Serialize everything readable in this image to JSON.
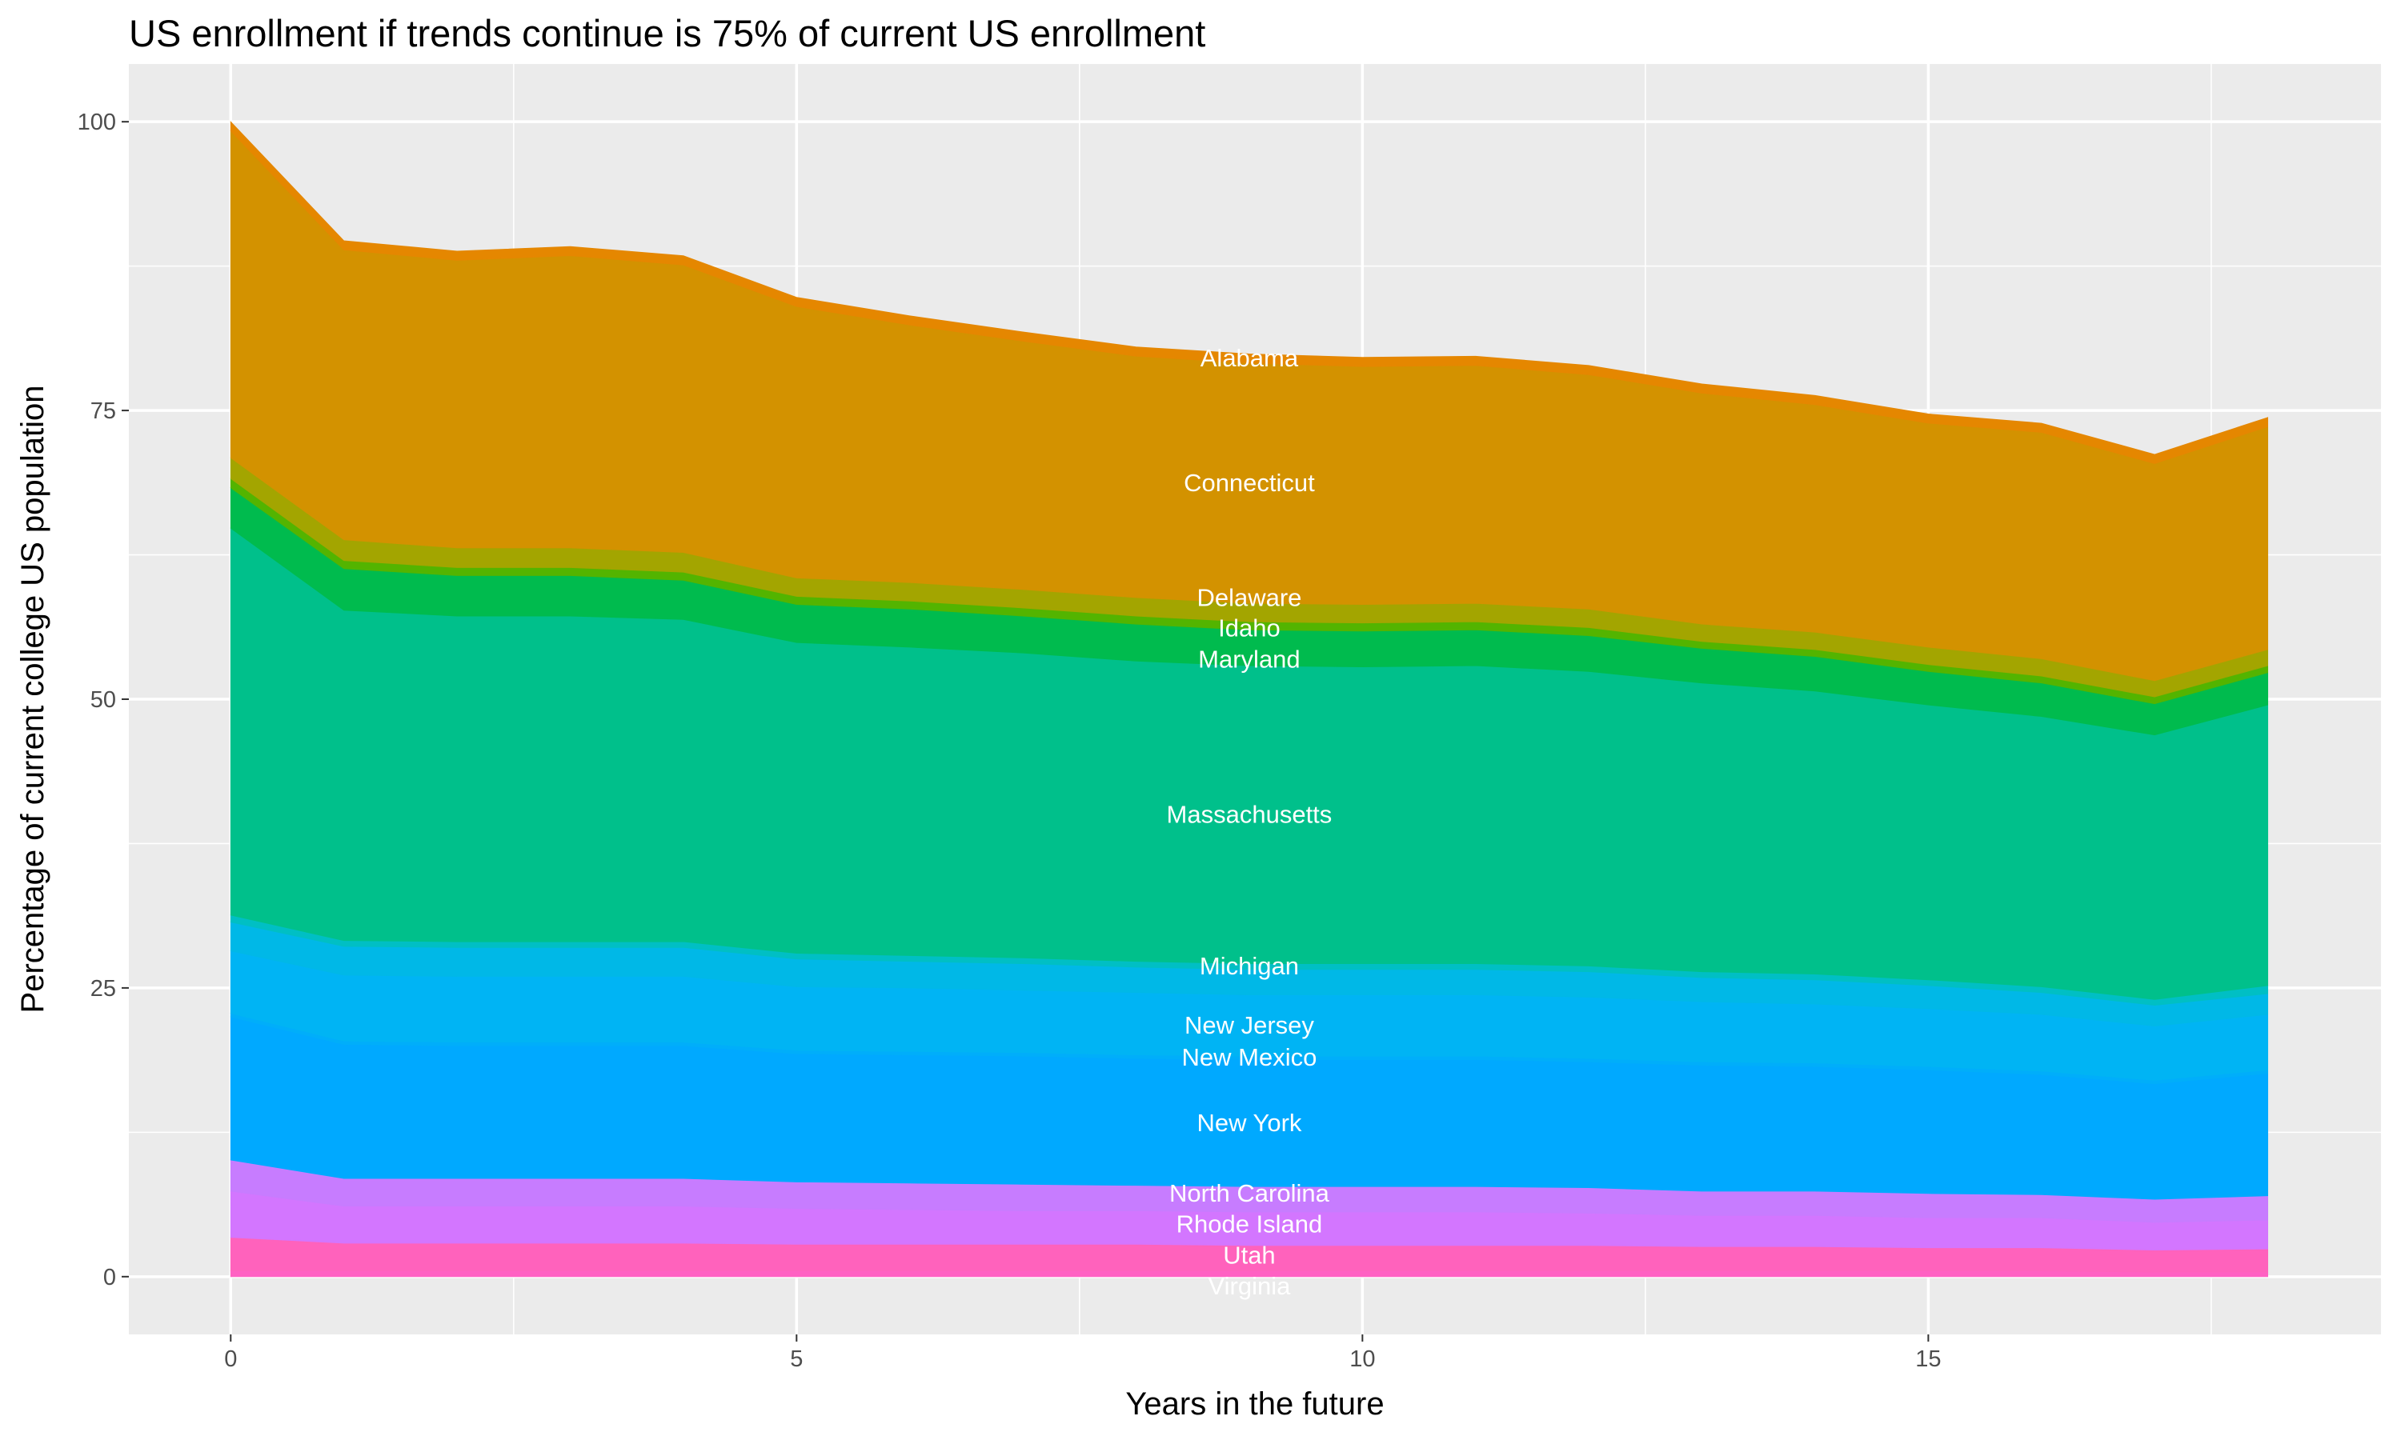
{
  "chart_data": {
    "type": "area",
    "stacked": true,
    "title": "US enrollment if trends continue is 75% of current US enrollment",
    "xlabel": "Years in the future",
    "ylabel": "Percentage of current college US population",
    "xlim": [
      -0.9,
      19
    ],
    "ylim": [
      -5,
      105
    ],
    "x_ticks": [
      0,
      5,
      10,
      15
    ],
    "y_ticks": [
      0,
      25,
      50,
      75,
      100
    ],
    "grid": true,
    "legend": "none",
    "label_x": 9,
    "x": [
      0,
      1,
      2,
      3,
      4,
      5,
      6,
      7,
      8,
      9,
      10,
      11,
      12,
      13,
      14,
      15,
      16,
      17,
      18
    ],
    "series": [
      {
        "name": "Virginia",
        "color": "#FF61C3",
        "values": [
          0.5,
          0.5,
          0.5,
          0.5,
          0.5,
          0.5,
          0.5,
          0.5,
          0.5,
          0.5,
          0.5,
          0.5,
          0.5,
          0.5,
          0.5,
          0.5,
          0.5,
          0.4,
          0.4
        ]
      },
      {
        "name": "Utah",
        "color": "#FF62BC",
        "values": [
          2.9,
          2.4,
          2.4,
          2.4,
          2.4,
          2.3,
          2.3,
          2.3,
          2.3,
          2.2,
          2.2,
          2.2,
          2.2,
          2.1,
          2.1,
          2.0,
          2.0,
          1.9,
          2.0
        ]
      },
      {
        "name": "Rhode Island",
        "color": "#D376FF",
        "values": [
          4.0,
          3.2,
          3.2,
          3.2,
          3.2,
          3.1,
          3.0,
          2.9,
          2.9,
          2.9,
          2.9,
          2.9,
          2.8,
          2.7,
          2.7,
          2.6,
          2.6,
          2.4,
          2.5
        ]
      },
      {
        "name": "North Carolina",
        "color": "#C77CFF",
        "values": [
          2.7,
          2.4,
          2.4,
          2.4,
          2.4,
          2.3,
          2.3,
          2.3,
          2.2,
          2.2,
          2.2,
          2.2,
          2.2,
          2.1,
          2.1,
          2.1,
          2.0,
          2.0,
          2.1
        ]
      },
      {
        "name": "New York",
        "color": "#00A9FF",
        "values": [
          12.4,
          11.6,
          11.5,
          11.5,
          11.5,
          11.1,
          11.1,
          11.1,
          11.0,
          11.0,
          11.0,
          11.0,
          10.9,
          10.9,
          10.8,
          10.7,
          10.4,
          10.0,
          10.6
        ]
      },
      {
        "name": "New Mexico",
        "color": "#00AEFA",
        "values": [
          0.3,
          0.3,
          0.3,
          0.3,
          0.3,
          0.3,
          0.3,
          0.3,
          0.3,
          0.3,
          0.3,
          0.3,
          0.3,
          0.3,
          0.3,
          0.3,
          0.3,
          0.3,
          0.3
        ]
      },
      {
        "name": "New Jersey",
        "color": "#00B4F4",
        "values": [
          5.4,
          5.7,
          5.7,
          5.7,
          5.7,
          5.5,
          5.5,
          5.4,
          5.4,
          5.3,
          5.3,
          5.3,
          5.3,
          5.2,
          5.1,
          5.0,
          4.9,
          4.7,
          4.8
        ]
      },
      {
        "color": "#00B8E7",
        "values": [
          2.5,
          2.5,
          2.5,
          2.5,
          2.5,
          2.4,
          2.3,
          2.3,
          2.2,
          2.2,
          2.2,
          2.2,
          2.2,
          2.1,
          2.1,
          2.0,
          1.9,
          1.8,
          1.8
        ]
      },
      {
        "name": "Michigan",
        "color": "#00BFC4",
        "values": [
          0.6,
          0.5,
          0.5,
          0.5,
          0.5,
          0.5,
          0.5,
          0.5,
          0.5,
          0.5,
          0.5,
          0.5,
          0.5,
          0.5,
          0.5,
          0.5,
          0.5,
          0.5,
          0.7
        ]
      },
      {
        "name": "Massachusetts",
        "color": "#00C08B",
        "values": [
          33.5,
          28.6,
          28.2,
          28.2,
          27.9,
          26.9,
          26.7,
          26.4,
          26.0,
          25.8,
          25.7,
          25.8,
          25.5,
          25.0,
          24.5,
          23.8,
          23.4,
          22.9,
          24.3
        ]
      },
      {
        "name": "Maryland",
        "color": "#00BB4E",
        "values": [
          3.5,
          3.6,
          3.5,
          3.5,
          3.4,
          3.3,
          3.3,
          3.2,
          3.2,
          3.1,
          3.1,
          3.1,
          3.1,
          3.0,
          3.0,
          2.9,
          2.9,
          2.7,
          2.8
        ]
      },
      {
        "name": "Idaho",
        "color": "#53B400",
        "values": [
          0.8,
          0.7,
          0.7,
          0.7,
          0.7,
          0.7,
          0.7,
          0.7,
          0.7,
          0.7,
          0.7,
          0.7,
          0.7,
          0.6,
          0.6,
          0.6,
          0.6,
          0.6,
          0.6
        ]
      },
      {
        "name": "Delaware",
        "color": "#A3A500",
        "values": [
          1.8,
          1.8,
          1.7,
          1.7,
          1.7,
          1.6,
          1.6,
          1.6,
          1.6,
          1.6,
          1.6,
          1.6,
          1.6,
          1.5,
          1.5,
          1.5,
          1.5,
          1.4,
          1.4
        ]
      },
      {
        "name": "Connecticut",
        "color": "#D39200",
        "values": [
          28.3,
          25.1,
          24.9,
          25.3,
          24.9,
          23.5,
          22.3,
          21.5,
          20.9,
          20.8,
          20.6,
          20.6,
          20.3,
          20.0,
          19.7,
          19.4,
          19.6,
          18.8,
          19.3
        ]
      },
      {
        "name": "Alabama",
        "color": "#E58700",
        "values": [
          0.8,
          0.8,
          0.8,
          0.8,
          0.8,
          0.8,
          0.8,
          0.8,
          0.8,
          0.8,
          0.8,
          0.8,
          0.8,
          0.8,
          0.8,
          0.8,
          0.8,
          0.8,
          0.8
        ]
      }
    ]
  }
}
